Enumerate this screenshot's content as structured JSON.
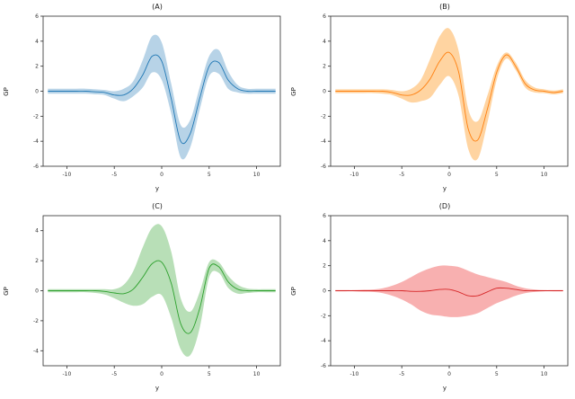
{
  "page": {
    "background": "#ffffff"
  },
  "chart_data": [
    {
      "type": "line",
      "panel": "A",
      "title": "(A)",
      "xlabel": "y",
      "ylabel": "GP",
      "line_color": "#1f77b4",
      "band_color": "#1f77b4",
      "band_opacity": 0.32,
      "xlim": [
        -12.5,
        12.5
      ],
      "ylim": [
        -6,
        6
      ],
      "xticks": [
        -10,
        -5,
        0,
        5,
        10
      ],
      "yticks": [
        -6,
        -4,
        -2,
        0,
        2,
        4,
        6
      ],
      "x": [
        -12,
        -11,
        -10,
        -9,
        -8,
        -7,
        -6,
        -5,
        -4,
        -3,
        -2,
        -1,
        0,
        1,
        2,
        3,
        4,
        5,
        6,
        7,
        8,
        9,
        10,
        11,
        12
      ],
      "mean": [
        0,
        0,
        0,
        0,
        0,
        -0.05,
        -0.1,
        -0.3,
        -0.3,
        0.2,
        1.3,
        2.8,
        2.4,
        -0.6,
        -4.0,
        -3.4,
        -0.6,
        2.0,
        2.3,
        0.9,
        0.2,
        0,
        0,
        0,
        0
      ],
      "upper": [
        0.2,
        0.2,
        0.2,
        0.2,
        0.2,
        0.15,
        0.1,
        0.0,
        0.2,
        0.8,
        2.5,
        4.4,
        3.9,
        0.6,
        -2.7,
        -2.3,
        0.3,
        2.8,
        3.3,
        1.6,
        0.5,
        0.2,
        0.2,
        0.2,
        0.2
      ],
      "lower": [
        -0.2,
        -0.2,
        -0.2,
        -0.2,
        -0.2,
        -0.25,
        -0.3,
        -0.6,
        -0.8,
        -0.4,
        0.3,
        1.5,
        0.9,
        -1.8,
        -5.3,
        -4.5,
        -1.5,
        1.2,
        1.4,
        0.2,
        -0.1,
        -0.2,
        -0.2,
        -0.2,
        -0.2
      ]
    },
    {
      "type": "line",
      "panel": "B",
      "title": "(B)",
      "xlabel": "y",
      "ylabel": "GP",
      "line_color": "#ff7f0e",
      "band_color": "#ff9f2e",
      "band_opacity": 0.45,
      "xlim": [
        -12.5,
        12.5
      ],
      "ylim": [
        -6,
        6
      ],
      "xticks": [
        -10,
        -5,
        0,
        5,
        10
      ],
      "yticks": [
        -6,
        -4,
        -2,
        0,
        2,
        4,
        6
      ],
      "x": [
        -12,
        -11,
        -10,
        -9,
        -8,
        -7,
        -6,
        -5,
        -4,
        -3,
        -2,
        -1,
        0,
        1,
        2,
        3,
        4,
        5,
        6,
        7,
        8,
        9,
        10,
        11,
        12
      ],
      "mean": [
        0,
        0,
        0,
        0,
        0,
        0,
        -0.1,
        -0.3,
        -0.3,
        0.1,
        1.0,
        2.4,
        3.1,
        1.5,
        -3.0,
        -3.9,
        -1.5,
        1.5,
        2.9,
        2.0,
        0.6,
        0.1,
        0,
        -0.1,
        0
      ],
      "upper": [
        0.15,
        0.15,
        0.15,
        0.15,
        0.15,
        0.15,
        0.1,
        0.0,
        0.2,
        0.9,
        2.6,
        4.4,
        5.0,
        3.2,
        -1.4,
        -2.4,
        -0.4,
        2.0,
        3.1,
        2.3,
        0.9,
        0.3,
        0.15,
        0.05,
        0.15
      ],
      "lower": [
        -0.15,
        -0.15,
        -0.15,
        -0.15,
        -0.15,
        -0.2,
        -0.3,
        -0.6,
        -0.9,
        -0.8,
        -0.5,
        0.5,
        1.2,
        -0.4,
        -4.6,
        -5.4,
        -2.6,
        0.9,
        2.6,
        1.7,
        0.3,
        -0.1,
        -0.15,
        -0.25,
        -0.15
      ]
    },
    {
      "type": "line",
      "panel": "C",
      "title": "(C)",
      "xlabel": "y",
      "ylabel": "GP",
      "line_color": "#2ca02c",
      "band_color": "#4daf4a",
      "band_opacity": 0.4,
      "xlim": [
        -12.5,
        12.5
      ],
      "ylim": [
        -5,
        5
      ],
      "xticks": [
        -10,
        -5,
        0,
        5,
        10
      ],
      "yticks": [
        -4,
        -2,
        0,
        2,
        4
      ],
      "x": [
        -12,
        -11,
        -10,
        -9,
        -8,
        -7,
        -6,
        -5,
        -4,
        -3,
        -2,
        -1,
        0,
        1,
        2,
        3,
        4,
        5,
        6,
        7,
        8,
        9,
        10,
        11,
        12
      ],
      "mean": [
        0,
        0,
        0,
        0,
        0,
        0,
        -0.05,
        -0.15,
        -0.2,
        0.1,
        0.9,
        1.8,
        1.9,
        0.5,
        -2.2,
        -2.8,
        -1.2,
        1.5,
        1.6,
        0.6,
        0.1,
        0,
        0,
        0,
        0
      ],
      "upper": [
        0.1,
        0.1,
        0.1,
        0.1,
        0.1,
        0.1,
        0.1,
        0.1,
        0.4,
        1.3,
        2.9,
        4.2,
        4.3,
        2.6,
        -0.5,
        -1.4,
        -0.1,
        1.9,
        1.9,
        1.0,
        0.4,
        0.15,
        0.1,
        0.1,
        0.1
      ],
      "lower": [
        -0.1,
        -0.1,
        -0.1,
        -0.1,
        -0.1,
        -0.15,
        -0.25,
        -0.5,
        -0.8,
        -1.0,
        -0.9,
        -0.4,
        -0.3,
        -1.8,
        -3.9,
        -4.3,
        -2.5,
        0.9,
        1.2,
        0.2,
        -0.2,
        -0.15,
        -0.1,
        -0.1,
        -0.1
      ]
    },
    {
      "type": "line",
      "panel": "D",
      "title": "(D)",
      "xlabel": "y",
      "ylabel": "GP",
      "line_color": "#d62728",
      "band_color": "#f05050",
      "band_opacity": 0.45,
      "xlim": [
        -12.5,
        12.5
      ],
      "ylim": [
        -6,
        6
      ],
      "xticks": [
        -10,
        -5,
        0,
        5,
        10
      ],
      "yticks": [
        -6,
        -4,
        -2,
        0,
        2,
        4,
        6
      ],
      "x": [
        -12,
        -11,
        -10,
        -9,
        -8,
        -7,
        -6,
        -5,
        -4,
        -3,
        -2,
        -1,
        0,
        1,
        2,
        3,
        4,
        5,
        6,
        7,
        8,
        9,
        10,
        11,
        12
      ],
      "mean": [
        0,
        0,
        0,
        0,
        0,
        0,
        0,
        0,
        -0.05,
        -0.05,
        0,
        0.1,
        0.1,
        -0.1,
        -0.4,
        -0.4,
        -0.1,
        0.2,
        0.2,
        0.1,
        0,
        0,
        0,
        0,
        0
      ],
      "upper": [
        0.05,
        0.05,
        0.05,
        0.08,
        0.1,
        0.2,
        0.4,
        0.7,
        1.1,
        1.5,
        1.8,
        2.0,
        2.0,
        1.9,
        1.6,
        1.3,
        1.1,
        0.9,
        0.7,
        0.4,
        0.2,
        0.1,
        0.05,
        0.05,
        0.05
      ],
      "lower": [
        -0.05,
        -0.05,
        -0.05,
        -0.08,
        -0.1,
        -0.2,
        -0.4,
        -0.7,
        -1.1,
        -1.6,
        -1.9,
        -2.0,
        -2.1,
        -2.1,
        -2.0,
        -1.8,
        -1.4,
        -1.0,
        -0.7,
        -0.4,
        -0.2,
        -0.1,
        -0.05,
        -0.05,
        -0.05
      ]
    }
  ]
}
